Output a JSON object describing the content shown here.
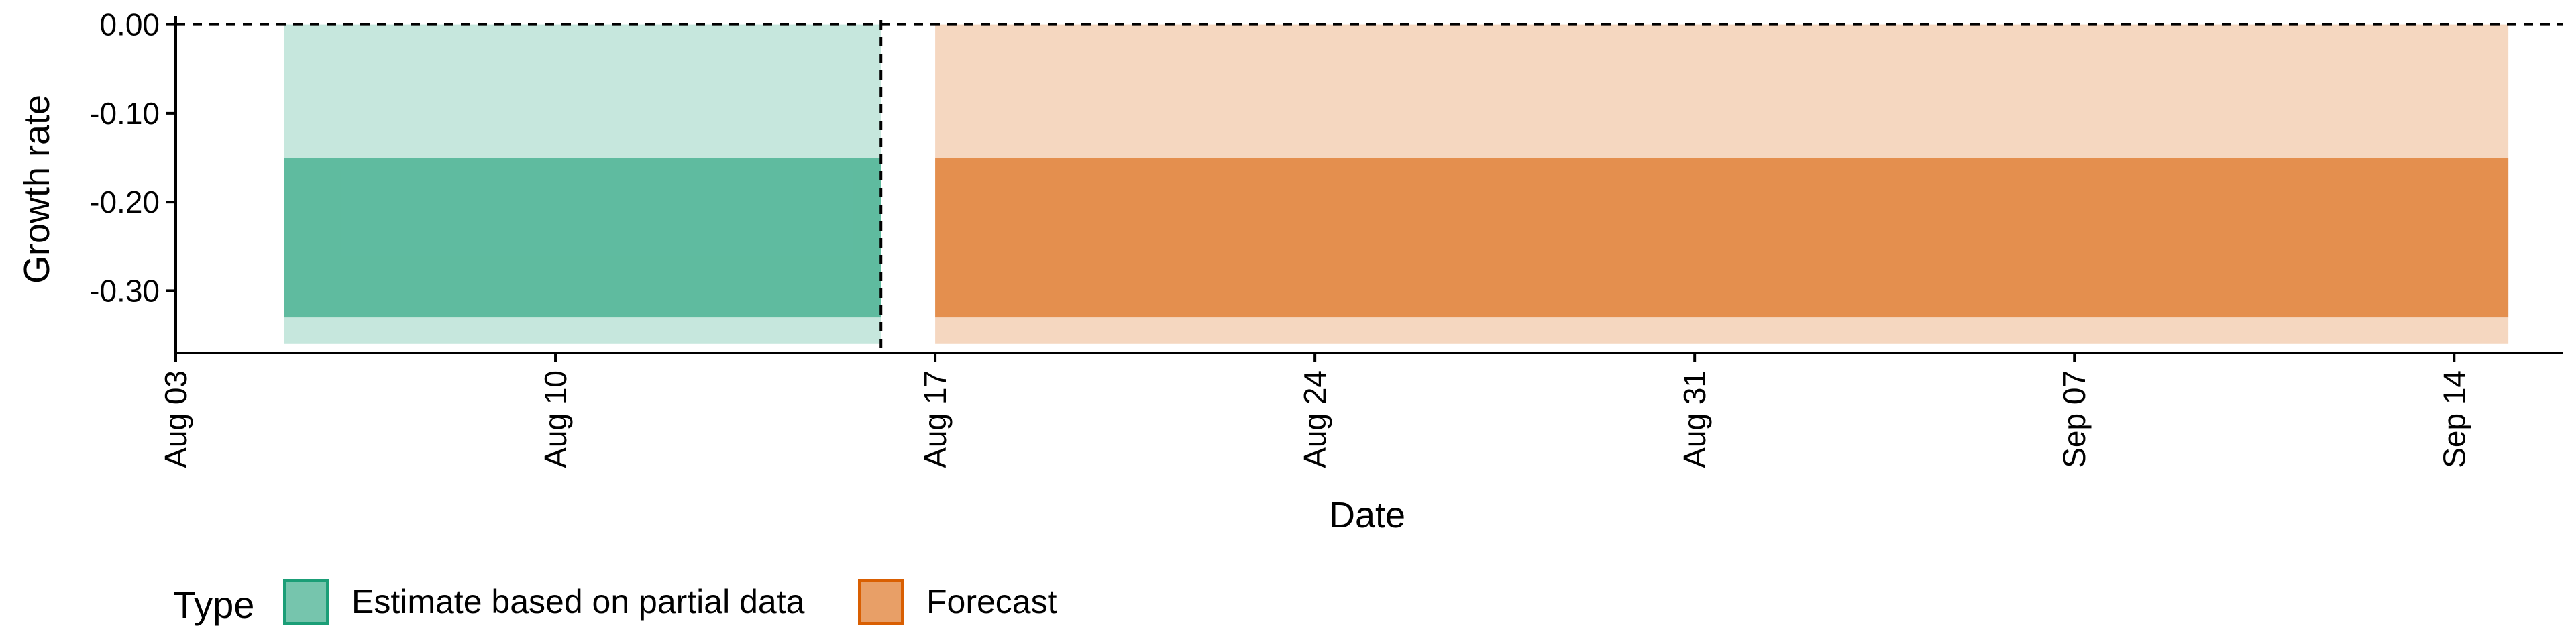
{
  "chart_data": {
    "type": "area",
    "title": "",
    "xlabel": "Date",
    "ylabel": "Growth rate",
    "x_type": "date",
    "xlim": [
      "2020-08-03",
      "2020-09-16"
    ],
    "ylim": [
      -0.37,
      0.005
    ],
    "x_ticks": [
      {
        "date": "2020-08-03",
        "label": "Aug 03"
      },
      {
        "date": "2020-08-10",
        "label": "Aug 10"
      },
      {
        "date": "2020-08-17",
        "label": "Aug 17"
      },
      {
        "date": "2020-08-24",
        "label": "Aug 24"
      },
      {
        "date": "2020-08-31",
        "label": "Aug 31"
      },
      {
        "date": "2020-09-07",
        "label": "Sep 07"
      },
      {
        "date": "2020-09-14",
        "label": "Sep 14"
      }
    ],
    "y_ticks": [
      {
        "value": 0.0,
        "label": "0.00"
      },
      {
        "value": -0.1,
        "label": "-0.10"
      },
      {
        "value": -0.2,
        "label": "-0.20"
      },
      {
        "value": -0.3,
        "label": "-0.30"
      }
    ],
    "reference_lines": [
      {
        "orientation": "horizontal",
        "y": 0.0,
        "style": "dashed"
      },
      {
        "orientation": "vertical",
        "x": "2020-08-16",
        "style": "dashed"
      }
    ],
    "series": [
      {
        "name": "Estimate based on partial data",
        "color": "#1b9e77",
        "x_start": "2020-08-05",
        "x_end": "2020-08-16",
        "bands": [
          {
            "lower": -0.36,
            "upper": 0.0,
            "opacity": 0.25
          },
          {
            "lower": -0.33,
            "upper": -0.15,
            "opacity": 0.6
          }
        ]
      },
      {
        "name": "Forecast",
        "color": "#d95f02",
        "x_start": "2020-08-17",
        "x_end": "2020-09-15",
        "bands": [
          {
            "lower": -0.36,
            "upper": 0.0,
            "opacity": 0.25
          },
          {
            "lower": -0.33,
            "upper": -0.15,
            "opacity": 0.6
          }
        ]
      }
    ],
    "legend": {
      "title": "Type",
      "position": "bottom",
      "items": [
        "Estimate based on partial data",
        "Forecast"
      ]
    },
    "grid": false
  }
}
